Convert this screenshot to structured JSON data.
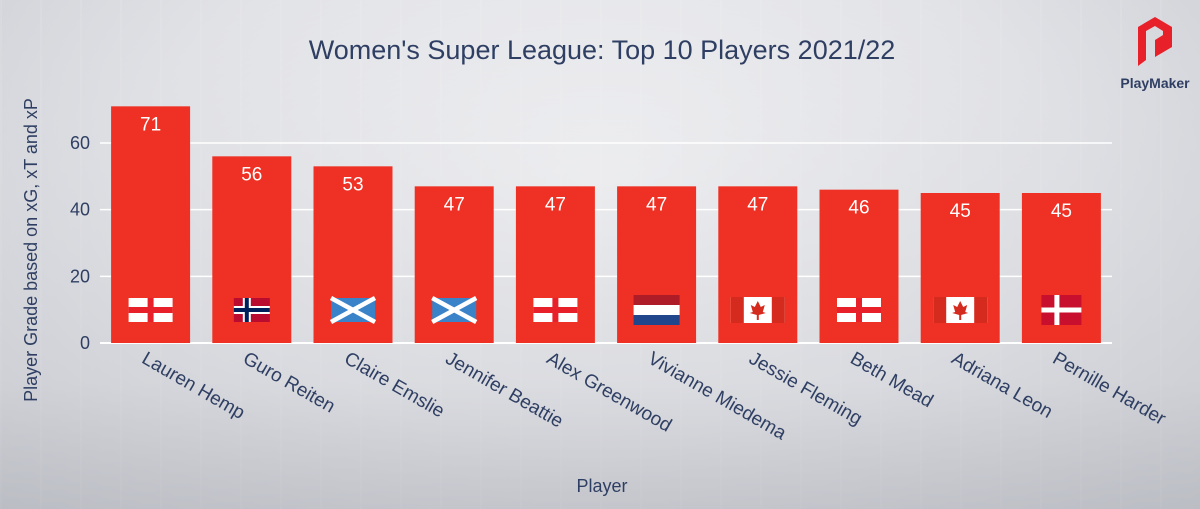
{
  "chart_data": {
    "type": "bar",
    "title": "Women's Super League: Top 10 Players 2021/22",
    "xlabel": "Player",
    "ylabel": "Player Grade based on xG, xT and xP",
    "ylim": [
      0,
      72
    ],
    "yticks": [
      0,
      20,
      40,
      60
    ],
    "grid": true,
    "bar_color": "#ee3124",
    "categories": [
      "Lauren Hemp",
      "Guro  Reiten",
      "Claire Emslie",
      "Jennifer Beattie",
      "Alex Greenwood",
      "Vivianne Miedema",
      "Jessie Fleming",
      "Beth Mead",
      "Adriana Leon",
      "Pernille Harder"
    ],
    "values": [
      71,
      56,
      53,
      47,
      47,
      47,
      47,
      46,
      45,
      45
    ],
    "value_labels": [
      "71",
      "56",
      "53",
      "47",
      "47",
      "47",
      "47",
      "46",
      "45",
      "45"
    ],
    "flags": [
      "england-flag-icon",
      "norway-flag-icon",
      "scotland-flag-icon",
      "scotland-flag-icon",
      "england-flag-icon",
      "netherlands-flag-icon",
      "canada-flag-icon",
      "england-flag-icon",
      "canada-flag-icon",
      "denmark-flag-icon"
    ]
  },
  "brand": {
    "name": "PlayMaker",
    "icon": "playmaker-logo-icon",
    "color": "#e8202a"
  }
}
